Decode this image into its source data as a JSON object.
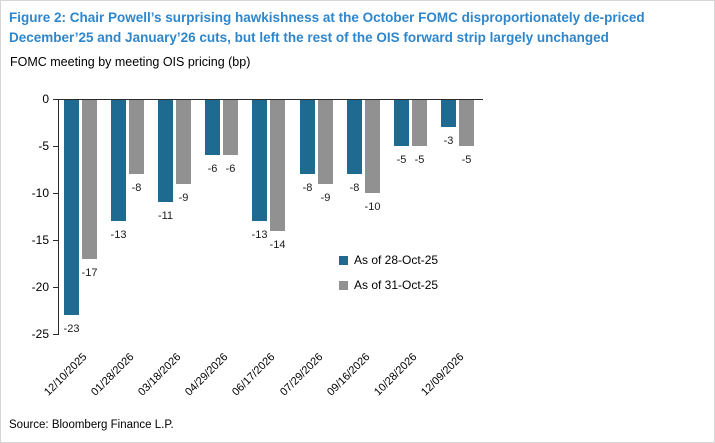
{
  "figure": {
    "title": "Figure 2: Chair Powell’s surprising hawkishness at the October FOMC disproportionately de-priced December’25 and January’26 cuts, but left the rest of the OIS forward strip largely unchanged",
    "subtitle": "FOMC meeting by meeting OIS pricing (bp)",
    "source": "Source: Bloomberg Finance L.P."
  },
  "colors": {
    "title_blue": "#2e86cc",
    "series1_blue": "#1e6a90",
    "series2_gray": "#919191",
    "axis": "#2b2b2b"
  },
  "chart_data": {
    "type": "bar",
    "title": "FOMC meeting by meeting OIS pricing (bp)",
    "categories": [
      "12/10/2025",
      "01/28/2026",
      "03/18/2026",
      "04/29/2026",
      "06/17/2026",
      "07/29/2026",
      "09/16/2026",
      "10/28/2026",
      "12/09/2026"
    ],
    "series": [
      {
        "name": "As of 28-Oct-25",
        "color": "#1e6a90",
        "values": [
          -23,
          -13,
          -11,
          -6,
          -13,
          -8,
          -8,
          -5,
          -3
        ]
      },
      {
        "name": "As of 31-Oct-25",
        "color": "#919191",
        "values": [
          -17,
          -8,
          -9,
          -6,
          -14,
          -9,
          -10,
          -5,
          -5
        ]
      }
    ],
    "xlabel": "",
    "ylabel": "",
    "ylim": [
      -25,
      0
    ],
    "yticks": [
      0,
      -5,
      -10,
      -15,
      -20,
      -25
    ],
    "grid": false,
    "data_labels": true,
    "legend_position": "inside-right"
  }
}
